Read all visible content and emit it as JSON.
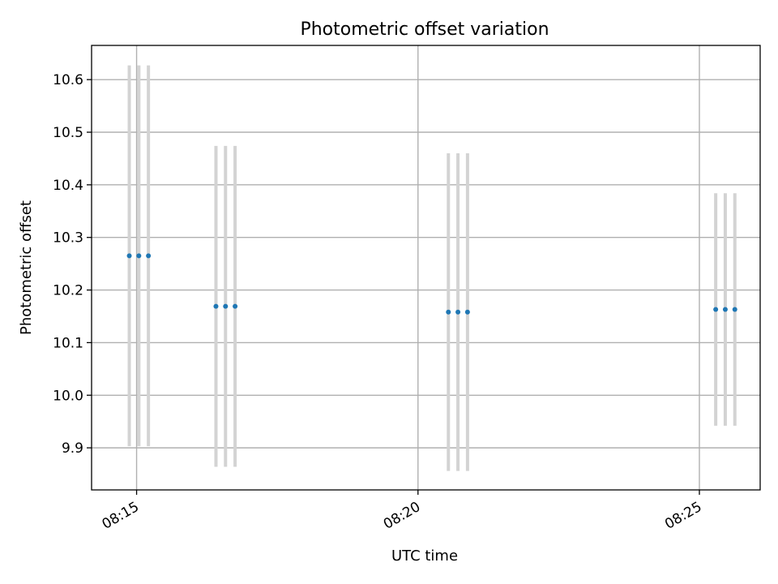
{
  "chart_data": {
    "type": "scatter",
    "title": "Photometric offset variation",
    "xlabel": "UTC time",
    "ylabel": "Photometric offset",
    "x_ticks": [
      {
        "label": "08:15",
        "minutes": 15
      },
      {
        "label": "08:20",
        "minutes": 20
      },
      {
        "label": "08:25",
        "minutes": 25
      }
    ],
    "y_ticks": [
      9.9,
      10.0,
      10.1,
      10.2,
      10.3,
      10.4,
      10.5,
      10.6
    ],
    "xlim_minutes": [
      14.2,
      26.08
    ],
    "ylim": [
      9.82,
      10.665
    ],
    "grid": true,
    "point_color": "#1f77b4",
    "errorbar_color": "#d3d3d3",
    "series": [
      {
        "points": [
          {
            "time": "08:14:52",
            "minutes": 14.87,
            "y": 10.265,
            "err": 0.362
          },
          {
            "time": "08:15:02",
            "minutes": 15.04,
            "y": 10.265,
            "err": 0.362
          },
          {
            "time": "08:15:12",
            "minutes": 15.21,
            "y": 10.265,
            "err": 0.362
          },
          {
            "time": "08:16:25",
            "minutes": 16.41,
            "y": 10.169,
            "err": 0.305
          },
          {
            "time": "08:16:35",
            "minutes": 16.58,
            "y": 10.169,
            "err": 0.305
          },
          {
            "time": "08:16:45",
            "minutes": 16.75,
            "y": 10.169,
            "err": 0.305
          },
          {
            "time": "08:20:32",
            "minutes": 20.54,
            "y": 10.158,
            "err": 0.302
          },
          {
            "time": "08:20:42",
            "minutes": 20.71,
            "y": 10.158,
            "err": 0.302
          },
          {
            "time": "08:20:52",
            "minutes": 20.88,
            "y": 10.158,
            "err": 0.302
          },
          {
            "time": "08:25:17",
            "minutes": 25.29,
            "y": 10.163,
            "err": 0.221
          },
          {
            "time": "08:25:27",
            "minutes": 25.46,
            "y": 10.163,
            "err": 0.221
          },
          {
            "time": "08:25:37",
            "minutes": 25.63,
            "y": 10.163,
            "err": 0.221
          }
        ]
      }
    ]
  }
}
